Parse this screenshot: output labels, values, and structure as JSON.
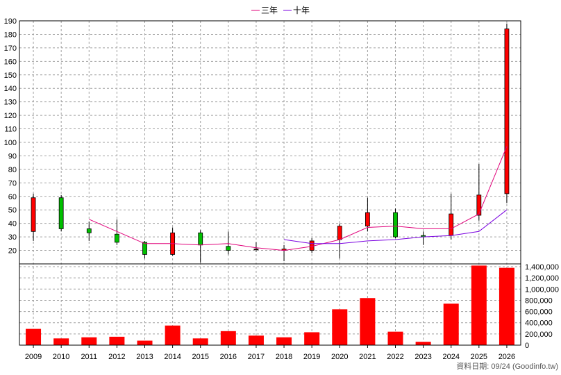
{
  "legend": {
    "ma3_label": "三年",
    "ma10_label": "十年"
  },
  "footer": "資料日期: 09/24  (Goodinfo.tw)",
  "colors": {
    "up": "#ff0000",
    "down": "#00c000",
    "ma3": "#e0007a",
    "ma10": "#7a00e0",
    "volume": "#ff0000",
    "grid": "#a0a0a0"
  },
  "chart_data": [
    {
      "type": "candlestick",
      "x": [
        "2009",
        "2010",
        "2011",
        "2012",
        "2013",
        "2014",
        "2015",
        "2016",
        "2017",
        "2018",
        "2019",
        "2020",
        "2021",
        "2022",
        "2023",
        "2024",
        "2025",
        "2026"
      ],
      "ylim": [
        10,
        190
      ],
      "yticks": [
        20,
        30,
        40,
        50,
        60,
        70,
        80,
        90,
        100,
        110,
        120,
        130,
        140,
        150,
        160,
        170,
        180,
        190
      ],
      "grid": true,
      "legend_position": "top-center",
      "candles": [
        {
          "open": 34,
          "close": 59,
          "high": 62,
          "low": 27
        },
        {
          "open": 59,
          "close": 36,
          "high": 61,
          "low": 34
        },
        {
          "open": 36,
          "close": 33,
          "high": 41,
          "low": 27
        },
        {
          "open": 32,
          "close": 26,
          "high": 43,
          "low": 24
        },
        {
          "open": 26,
          "close": 17,
          "high": 27,
          "low": 14
        },
        {
          "open": 17,
          "close": 33,
          "high": 37,
          "low": 16
        },
        {
          "open": 33,
          "close": 24,
          "high": 35,
          "low": 11
        },
        {
          "open": 23,
          "close": 20,
          "high": 34,
          "low": 17
        },
        {
          "open": 21,
          "close": 21,
          "high": 26,
          "low": 19
        },
        {
          "open": 20,
          "close": 21,
          "high": 24,
          "low": 12
        },
        {
          "open": 20,
          "close": 27,
          "high": 29,
          "low": 18
        },
        {
          "open": 28,
          "close": 38,
          "high": 40,
          "low": 14
        },
        {
          "open": 38,
          "close": 48,
          "high": 59,
          "low": 34
        },
        {
          "open": 48,
          "close": 30,
          "high": 51,
          "low": 29
        },
        {
          "open": 31,
          "close": 30,
          "high": 34,
          "low": 24
        },
        {
          "open": 31,
          "close": 47,
          "high": 62,
          "low": 28
        },
        {
          "open": 46,
          "close": 61,
          "high": 84,
          "low": 42
        },
        {
          "open": 62,
          "close": 184,
          "high": 188,
          "low": 55
        }
      ],
      "series": [
        {
          "name": "三年",
          "values": [
            null,
            null,
            43,
            34,
            25,
            25,
            24,
            25,
            22,
            20,
            23,
            28,
            37,
            38,
            36,
            36,
            47,
            97
          ]
        },
        {
          "name": "十年",
          "values": [
            null,
            null,
            null,
            null,
            null,
            null,
            null,
            null,
            null,
            28,
            25,
            25,
            27,
            28,
            30,
            31,
            34,
            50
          ]
        }
      ]
    },
    {
      "type": "bar",
      "categories": [
        "2009",
        "2010",
        "2011",
        "2012",
        "2013",
        "2014",
        "2015",
        "2016",
        "2017",
        "2018",
        "2019",
        "2020",
        "2021",
        "2022",
        "2023",
        "2024",
        "2025",
        "2026"
      ],
      "values": [
        290000,
        120000,
        140000,
        150000,
        80000,
        350000,
        120000,
        250000,
        170000,
        140000,
        230000,
        640000,
        840000,
        240000,
        60000,
        740000,
        1420000,
        1380000
      ],
      "ylim": [
        0,
        1450000
      ],
      "yticks": [
        "0",
        "200,000",
        "400,000",
        "600,000",
        "800,000",
        "1,000,000",
        "1,200,000",
        "1,400,000"
      ],
      "ytick_values": [
        0,
        200000,
        400000,
        600000,
        800000,
        1000000,
        1200000,
        1400000
      ],
      "grid": true
    }
  ]
}
